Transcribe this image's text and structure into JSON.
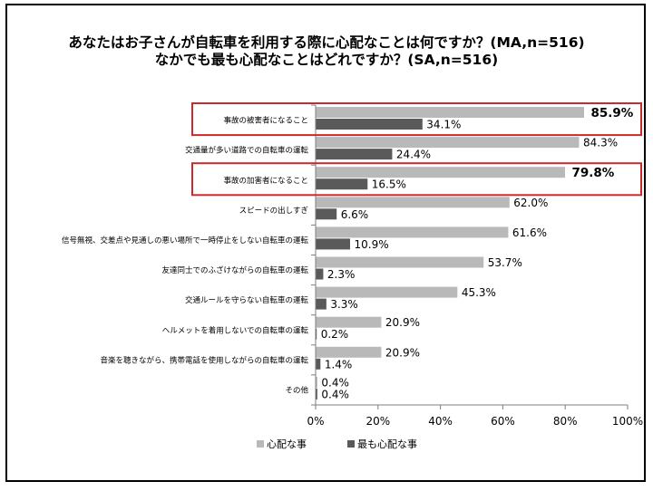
{
  "title_lines": [
    "あなたはお子さんが自転車を利用する際に心配なことは何ですか？(MA,n=516)",
    "なかでも最も心配なことはどれですか？(SA,n=516)"
  ],
  "chart_data": {
    "type": "bar",
    "orientation": "horizontal",
    "categories": [
      "事故の被害者になること",
      "交通量が多い道路での自転車の運転",
      "事故の加害者になること",
      "スピードの出しすぎ",
      "信号無視、交差点や見通しの悪い場所で一時停止をしない自転車の運転",
      "友達同士でのふざけながらの自転車の運転",
      "交通ルールを守らない自転車の運転",
      "ヘルメットを着用しないでの自転車の運転",
      "音楽を聴きながら、携帯電話を使用しながらの自転車の運転",
      "その他"
    ],
    "series": [
      {
        "name": "心配な事",
        "color": "#b9b9b9",
        "values": [
          85.9,
          84.3,
          79.8,
          62.0,
          61.6,
          53.7,
          45.3,
          20.9,
          20.9,
          0.4
        ],
        "labels": [
          "85.9%",
          "84.3%",
          "79.8%",
          "62.0%",
          "61.6%",
          "53.7%",
          "45.3%",
          "20.9%",
          "20.9%",
          "0.4%"
        ]
      },
      {
        "name": "最も心配な事",
        "color": "#5a5a5a",
        "values": [
          34.1,
          24.4,
          16.5,
          6.6,
          10.9,
          2.3,
          3.3,
          0.2,
          1.4,
          0.4
        ],
        "labels": [
          "34.1%",
          "24.4%",
          "16.5%",
          "6.6%",
          "10.9%",
          "2.3%",
          "3.3%",
          "0.2%",
          "1.4%",
          "0.4%"
        ]
      }
    ],
    "x_ticks": [
      "0%",
      "20%",
      "40%",
      "60%",
      "80%",
      "100%"
    ],
    "xlim": [
      0,
      100
    ],
    "grid": false,
    "legend_position": "bottom",
    "highlighted_categories": [
      "事故の被害者になること",
      "事故の加害者になること"
    ],
    "highlight_color": "#cc2a2a"
  }
}
